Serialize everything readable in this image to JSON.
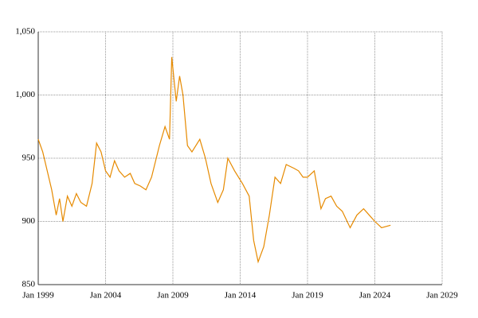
{
  "chart_data": {
    "type": "line",
    "x": [
      "1999-01",
      "1999-05",
      "1999-09",
      "2000-01",
      "2000-05",
      "2000-08",
      "2000-11",
      "2001-03",
      "2001-07",
      "2001-11",
      "2002-03",
      "2002-08",
      "2003-01",
      "2003-05",
      "2003-09",
      "2004-01",
      "2004-05",
      "2004-09",
      "2005-01",
      "2005-06",
      "2005-11",
      "2006-03",
      "2006-08",
      "2007-01",
      "2007-06",
      "2008-01",
      "2008-06",
      "2008-10",
      "2008-12",
      "2009-04",
      "2009-07",
      "2009-10",
      "2010-02",
      "2010-06",
      "2011-01",
      "2011-06",
      "2011-11",
      "2012-05",
      "2012-10",
      "2013-02",
      "2013-08",
      "2014-03",
      "2014-09",
      "2015-01",
      "2015-05",
      "2015-10",
      "2016-03",
      "2016-08",
      "2017-01",
      "2017-06",
      "2018-01",
      "2018-05",
      "2018-09",
      "2019-01",
      "2019-07",
      "2020-01",
      "2020-05",
      "2020-10",
      "2021-03",
      "2021-08",
      "2022-03",
      "2022-09",
      "2023-03",
      "2023-08",
      "2024-01",
      "2024-07",
      "2025-03"
    ],
    "series": [
      {
        "color": "#e68a00",
        "values": [
          965,
          955,
          940,
          925,
          905,
          918,
          900,
          920,
          912,
          922,
          915,
          912,
          930,
          962,
          955,
          940,
          935,
          948,
          940,
          935,
          938,
          930,
          928,
          925,
          935,
          960,
          975,
          965,
          1030,
          995,
          1015,
          1000,
          960,
          955,
          965,
          950,
          930,
          915,
          925,
          950,
          940,
          930,
          920,
          885,
          868,
          880,
          905,
          935,
          930,
          945,
          942,
          940,
          935,
          935,
          940,
          910,
          918,
          920,
          912,
          908,
          895,
          905,
          910,
          905,
          900,
          895,
          897
        ]
      }
    ],
    "xlim": [
      "1999-01",
      "2029-01"
    ],
    "xticks": [
      {
        "value": "1999-01",
        "label": "Jan 1999"
      },
      {
        "value": "2004-01",
        "label": "Jan 2004"
      },
      {
        "value": "2009-01",
        "label": "Jan 2009"
      },
      {
        "value": "2014-01",
        "label": "Jan 2014"
      },
      {
        "value": "2019-01",
        "label": "Jan 2019"
      },
      {
        "value": "2024-01",
        "label": "Jan 2024"
      },
      {
        "value": "2029-01",
        "label": "Jan 2029"
      }
    ],
    "ylim": [
      850,
      1050
    ],
    "yticks": [
      850,
      900,
      950,
      {
        "value": 1000,
        "label": "1,000"
      },
      {
        "value": 1050,
        "label": "1,050"
      }
    ],
    "grid": true
  }
}
